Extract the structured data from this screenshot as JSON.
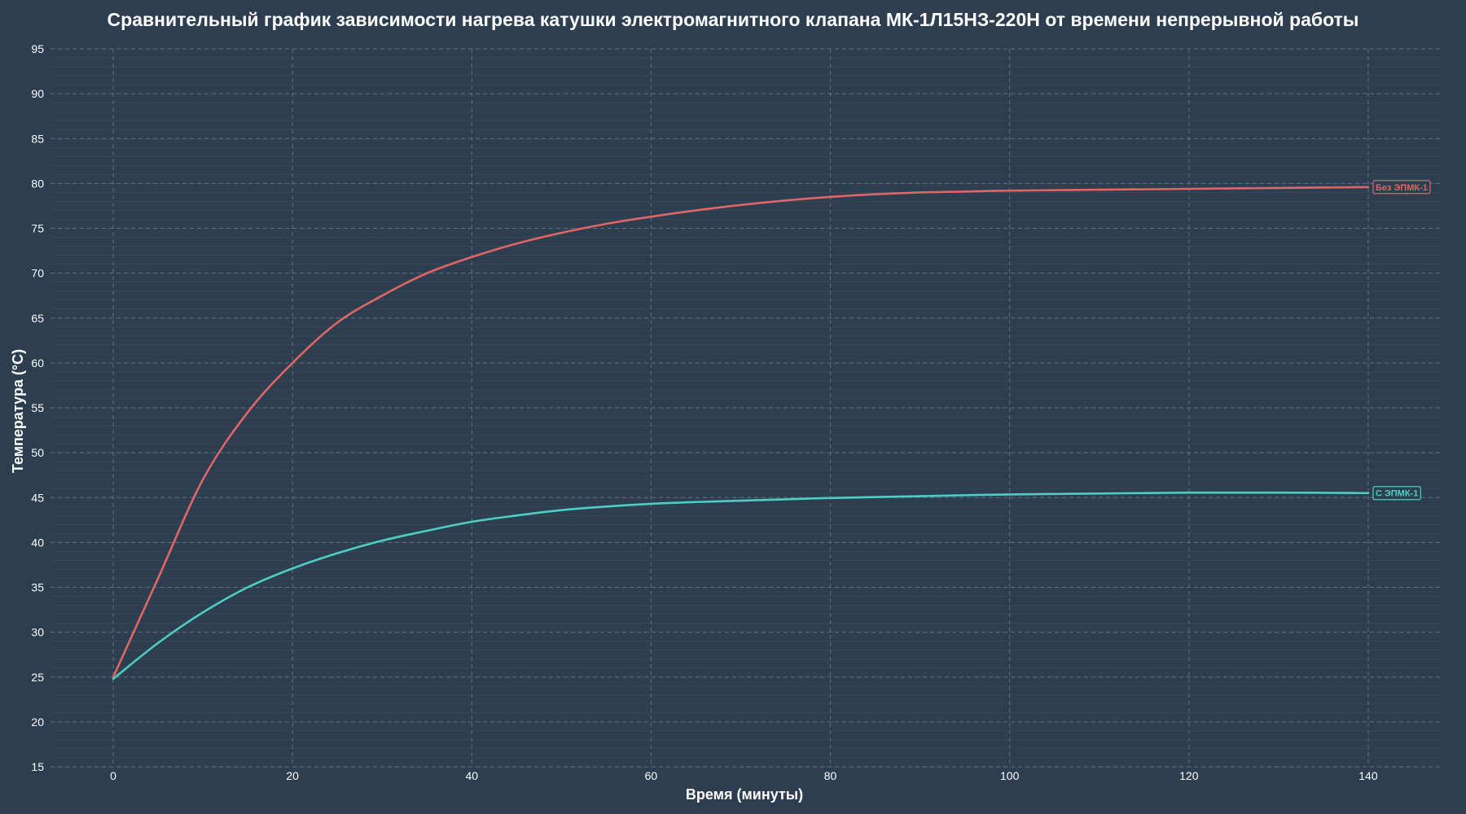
{
  "colors": {
    "background": "#2c3e50",
    "grid": "#4a5c6b",
    "text": "#ffffff"
  },
  "chart_data": {
    "type": "line",
    "title": "Сравнительный график зависимости нагрева катушки электромагнитного клапана МК-1Л15НЗ-220Н от времени непрерывной работы",
    "xlabel": "Время (минуты)",
    "ylabel": "Температура (°C)",
    "xlim": [
      -7,
      148
    ],
    "ylim": [
      15,
      95
    ],
    "xticks": [
      0,
      20,
      40,
      60,
      80,
      100,
      120,
      140
    ],
    "yticks": [
      15,
      20,
      25,
      30,
      35,
      40,
      45,
      50,
      55,
      60,
      65,
      70,
      75,
      80,
      85,
      90,
      95
    ],
    "grid": true,
    "legend": "end-of-line labels",
    "series": [
      {
        "name": "Без ЭПМК-1",
        "color": "#e06666",
        "x": [
          0,
          5,
          10,
          15,
          20,
          25,
          30,
          35,
          40,
          45,
          50,
          55,
          60,
          65,
          70,
          75,
          80,
          85,
          90,
          95,
          100,
          110,
          120,
          130,
          140
        ],
        "y": [
          25,
          36,
          47,
          54.5,
          60,
          64.5,
          67.5,
          70,
          71.8,
          73.3,
          74.5,
          75.5,
          76.3,
          77,
          77.6,
          78.1,
          78.5,
          78.8,
          79,
          79.1,
          79.2,
          79.3,
          79.4,
          79.5,
          79.6
        ]
      },
      {
        "name": "С ЭПМК-1",
        "color": "#4ecdc4",
        "x": [
          0,
          5,
          10,
          15,
          20,
          25,
          30,
          35,
          40,
          45,
          50,
          55,
          60,
          65,
          70,
          75,
          80,
          90,
          100,
          110,
          120,
          130,
          140
        ],
        "y": [
          24.8,
          28.8,
          32.2,
          35,
          37.1,
          38.8,
          40.2,
          41.3,
          42.3,
          43,
          43.6,
          44,
          44.3,
          44.5,
          44.65,
          44.8,
          44.95,
          45.15,
          45.35,
          45.45,
          45.55,
          45.55,
          45.5
        ]
      }
    ]
  }
}
